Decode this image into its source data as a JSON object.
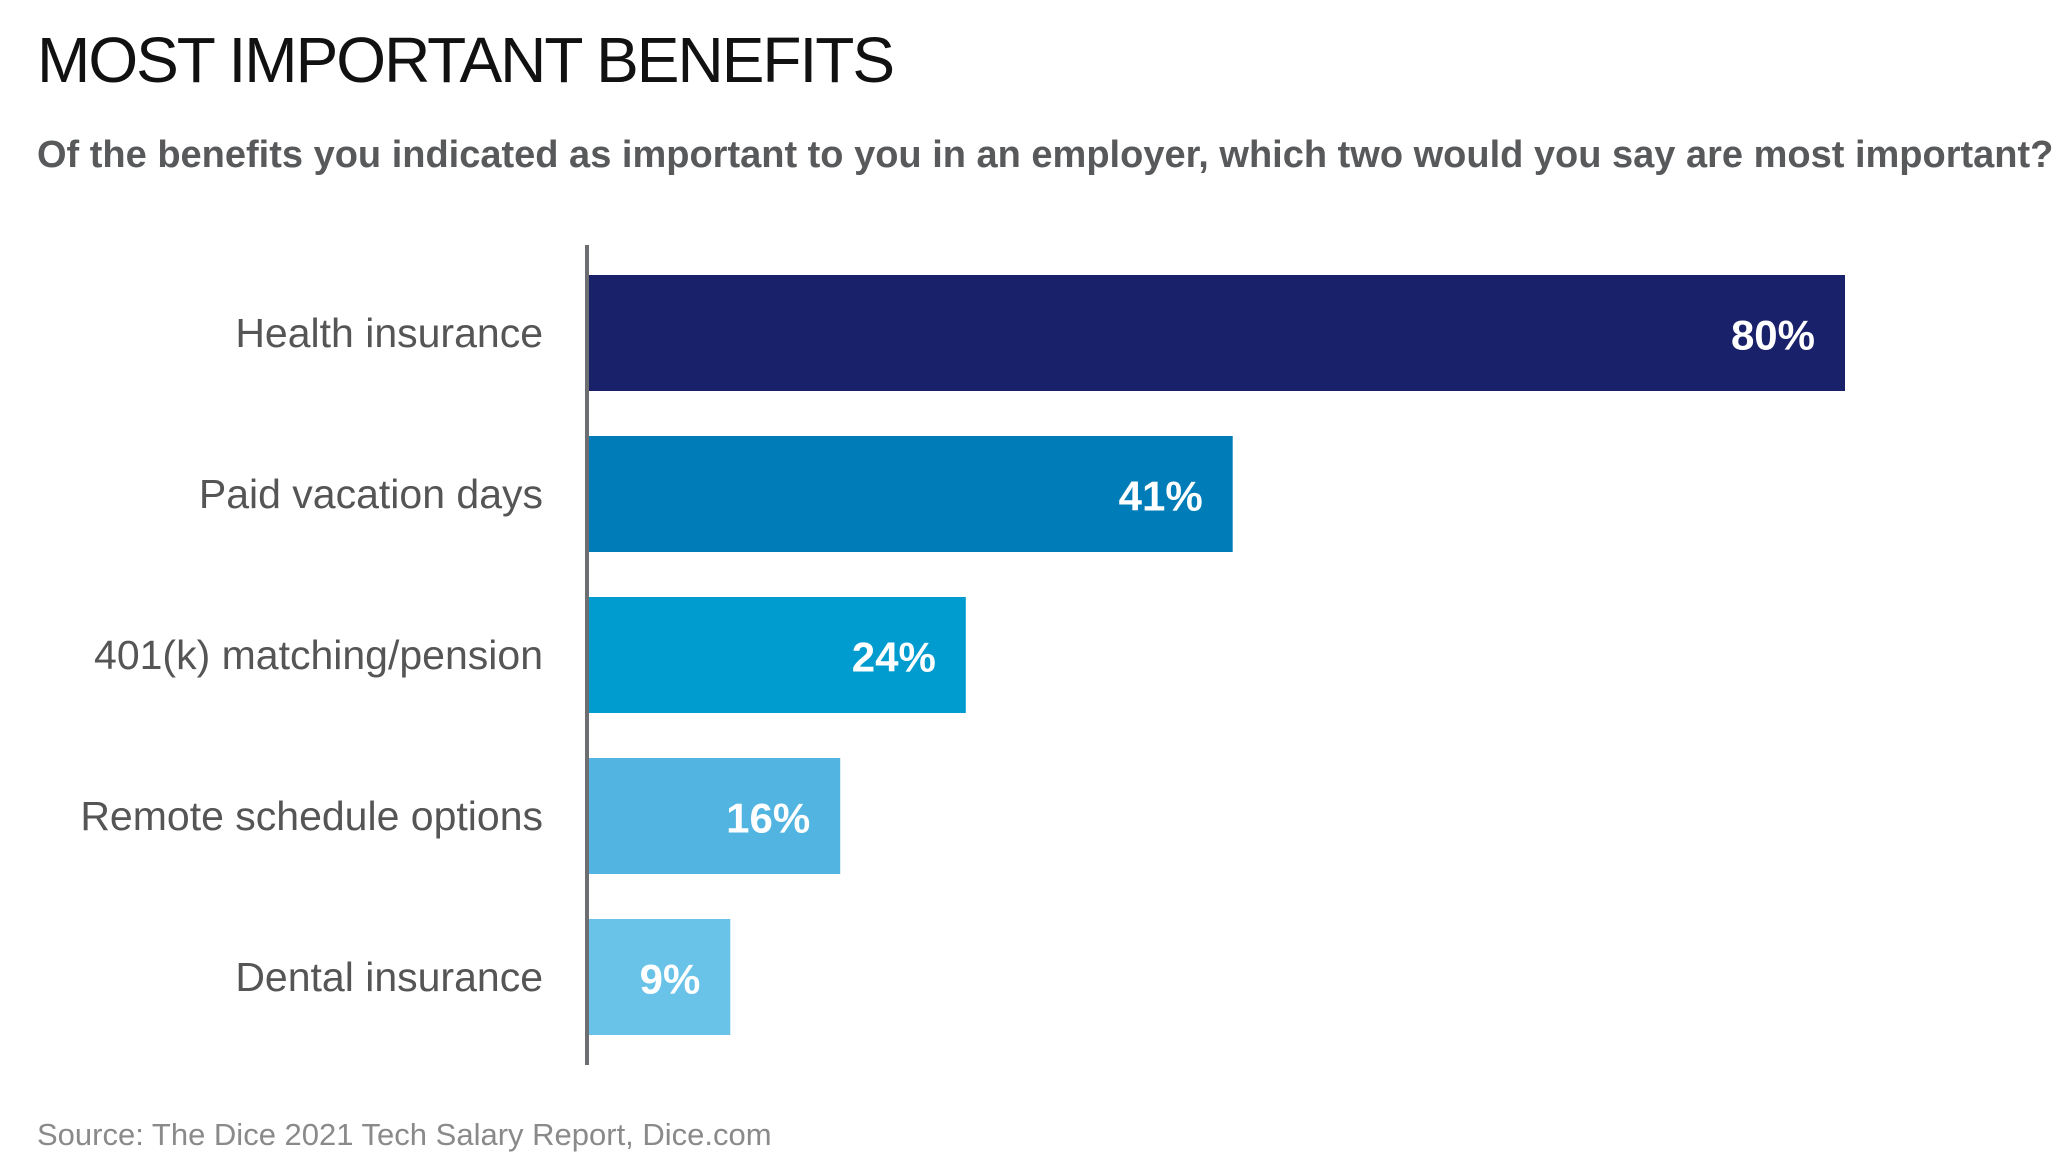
{
  "chart_data": {
    "type": "bar",
    "orientation": "horizontal",
    "title": "MOST IMPORTANT BENEFITS",
    "subtitle": "Of the benefits you indicated as important to you in an employer, which two would you say are most important?",
    "categories": [
      "Health insurance",
      "Paid vacation days",
      "401(k) matching/pension",
      "Remote schedule options",
      "Dental insurance"
    ],
    "values": [
      80,
      41,
      24,
      16,
      9
    ],
    "value_labels": [
      "80%",
      "41%",
      "24%",
      "16%",
      "9%"
    ],
    "unit": "%",
    "colors": [
      "#1a216b",
      "#007db8",
      "#009ccf",
      "#52b4e0",
      "#69c3e8"
    ],
    "xlim": [
      0,
      100
    ],
    "grid": false,
    "legend": "none",
    "source": "Source: The Dice 2021 Tech Salary Report, Dice.com"
  }
}
